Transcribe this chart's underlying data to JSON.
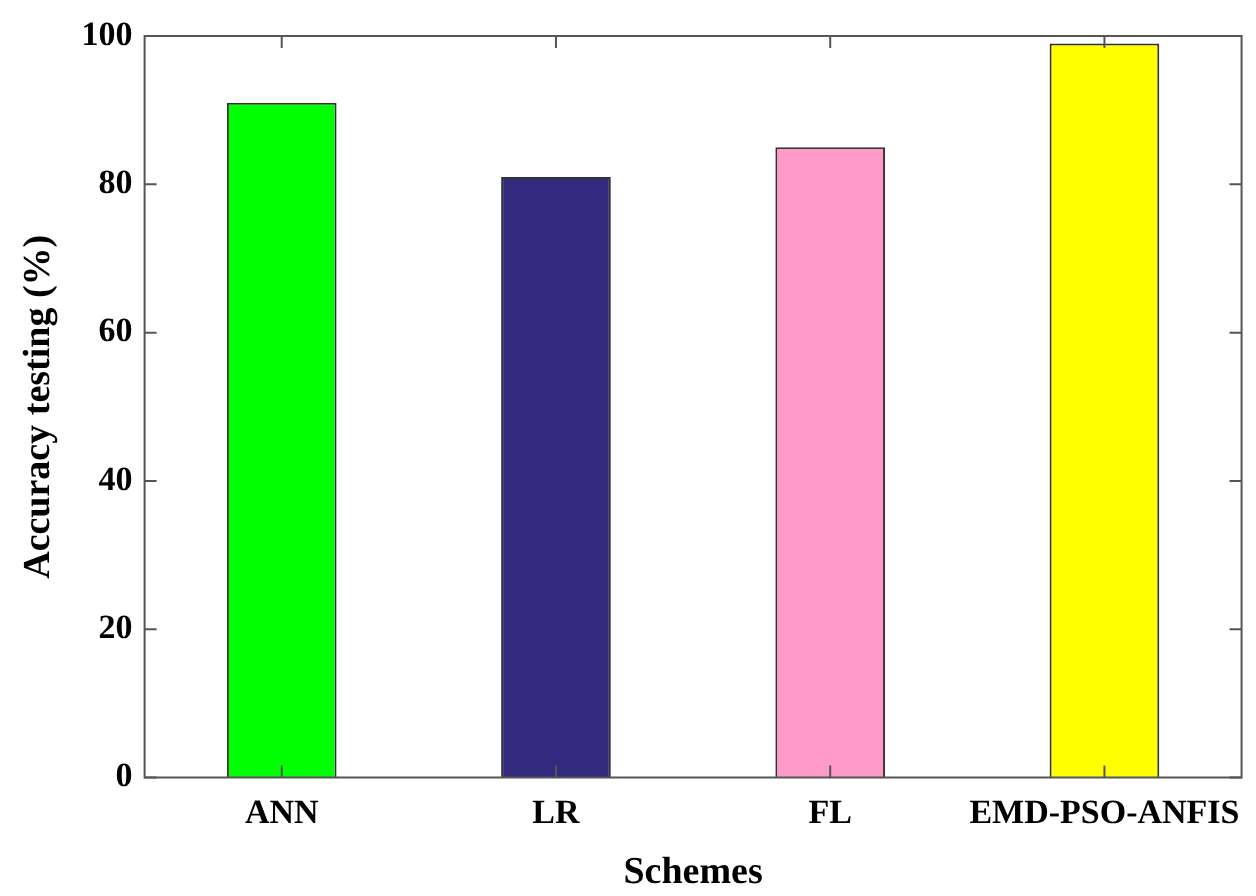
{
  "chart_data": {
    "type": "bar",
    "xlabel": "Schemes",
    "ylabel": "Accuracy testing (%)",
    "categories": [
      "ANN",
      "LR",
      "FL",
      "EMD-PSO-ANFIS"
    ],
    "values": [
      91,
      81,
      85,
      99
    ],
    "colors": [
      "#00ff00",
      "#332a80",
      "#ff99c8",
      "#ffff00"
    ],
    "ylim": [
      0,
      100
    ],
    "yticks": [
      0,
      20,
      40,
      60,
      80,
      100
    ],
    "grid": false,
    "legend": false
  }
}
